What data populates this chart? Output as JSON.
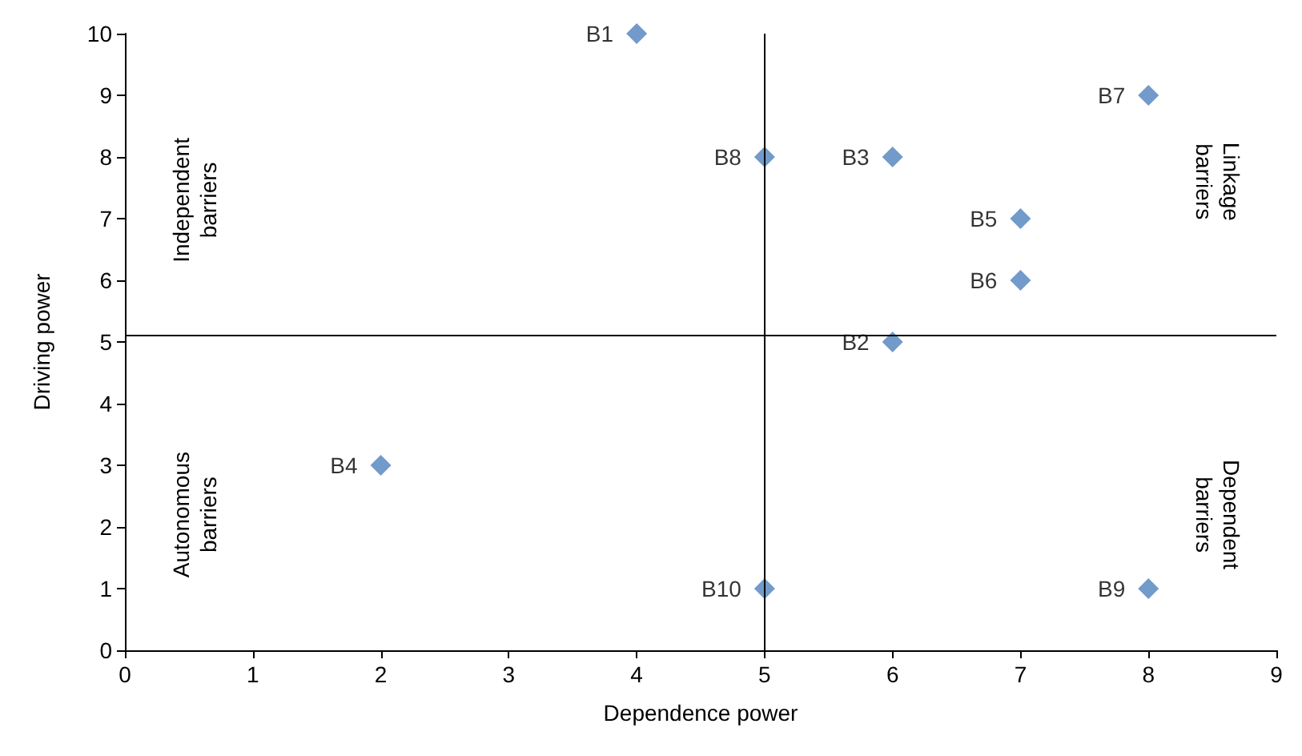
{
  "chart_data": {
    "type": "scatter",
    "xlabel": "Dependence power",
    "ylabel": "Driving power",
    "x": [
      4,
      6,
      6,
      2,
      7,
      7,
      8,
      5,
      8,
      5
    ],
    "values": [
      10,
      5,
      8,
      3,
      7,
      6,
      9,
      8,
      1,
      1
    ],
    "value_labels": [
      "B1",
      "B2",
      "B3",
      "B4",
      "B5",
      "B6",
      "B7",
      "B8",
      "B9",
      "B10"
    ],
    "color": "#4f81bd",
    "marker": "diamond",
    "xlim": [
      0,
      9
    ],
    "xticks": [
      0,
      1,
      2,
      3,
      4,
      5,
      6,
      7,
      8,
      9
    ],
    "ylim": [
      0,
      10
    ],
    "yticks": [
      0,
      1,
      2,
      3,
      4,
      5,
      6,
      7,
      8,
      9,
      10
    ],
    "grid": false,
    "ref_lines": [
      {
        "axis": "x",
        "value": 5,
        "color": "#000000"
      },
      {
        "axis": "y",
        "value": 5.1,
        "color": "#000000"
      }
    ],
    "annotations": [
      "Independent barriers",
      "Autonomous barriers",
      "Linkage barriers",
      "Dependent barriers"
    ]
  }
}
